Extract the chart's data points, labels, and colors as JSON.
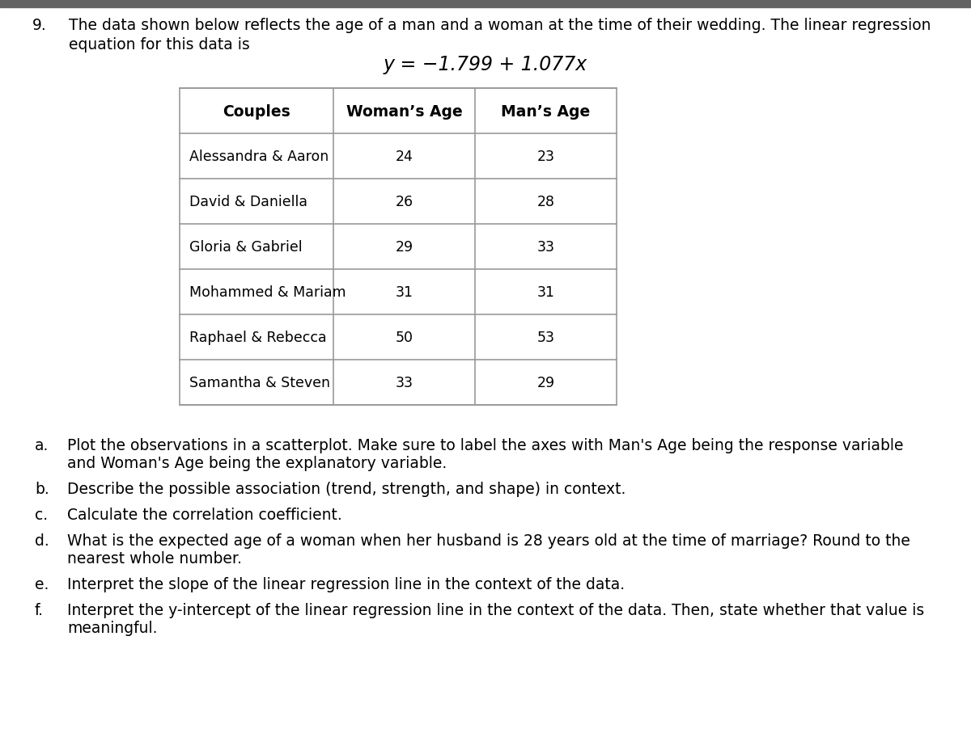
{
  "question_number": "9.",
  "intro_text_line1": "The data shown below reflects the age of a man and a woman at the time of their wedding. The linear regression",
  "intro_text_line2": "equation for this data is",
  "equation": "y = −1.799 + 1.077x",
  "table_headers": [
    "Couples",
    "Woman’s Age",
    "Man’s Age"
  ],
  "table_rows": [
    [
      "Alessandra & Aaron",
      "24",
      "23"
    ],
    [
      "David & Daniella",
      "26",
      "28"
    ],
    [
      "Gloria & Gabriel",
      "29",
      "33"
    ],
    [
      "Mohammed & Mariam",
      "31",
      "31"
    ],
    [
      "Raphael & Rebecca",
      "50",
      "53"
    ],
    [
      "Samantha & Steven",
      "33",
      "29"
    ]
  ],
  "questions": [
    {
      "label": "a.",
      "text": "Plot the observations in a scatterplot. Make sure to label the axes with Man's Age being the response variable",
      "text2": "and Woman's Age being the explanatory variable."
    },
    {
      "label": "b.",
      "text": "Describe the possible association (trend, strength, and shape) in context.",
      "text2": ""
    },
    {
      "label": "c.",
      "text": "Calculate the correlation coefficient.",
      "text2": ""
    },
    {
      "label": "d.",
      "text": "What is the expected age of a woman when her husband is 28 years old at the time of marriage? Round to the",
      "text2": "nearest whole number."
    },
    {
      "label": "e.",
      "text": "Interpret the slope of the linear regression line in the context of the data.",
      "text2": ""
    },
    {
      "label": "f.",
      "text": "Interpret the y-intercept of the linear regression line in the context of the data. Then, state whether that value is",
      "text2": "meaningful."
    }
  ],
  "bg_color": "#ffffff",
  "header_bar_color": "#636363",
  "text_color": "#000000",
  "table_line_color": "#999999",
  "font_size_body": 13.5,
  "font_size_equation": 17,
  "font_size_header": 13.5,
  "fig_width": 12.0,
  "fig_height": 9.29,
  "dpi": 100
}
